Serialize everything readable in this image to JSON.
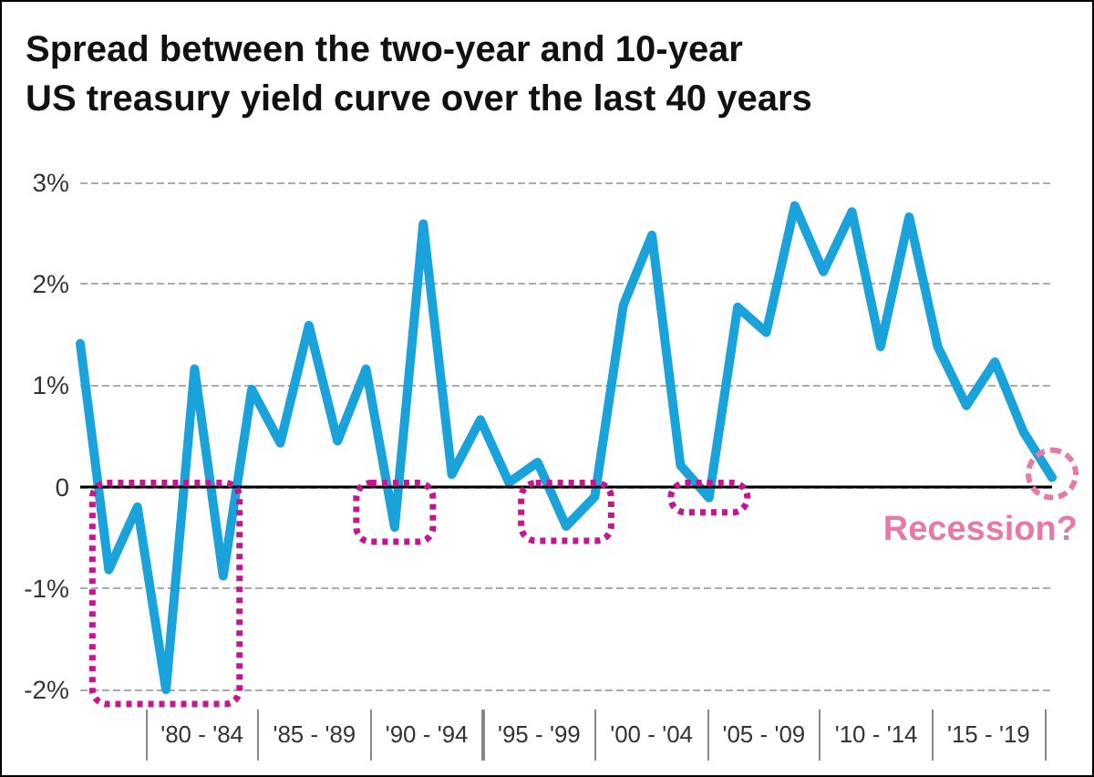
{
  "chart_data": {
    "type": "line",
    "title": "Spread between the two-year and 10-year\nUS treasury yield curve over the last 40 years",
    "categories": [
      null,
      null,
      null,
      null,
      null,
      null,
      null,
      null,
      null,
      null,
      null,
      null,
      null,
      null,
      null,
      null,
      null,
      null,
      null,
      null,
      null,
      null,
      null,
      null,
      null,
      null,
      null,
      null,
      null,
      null,
      null,
      null,
      null,
      null,
      null
    ],
    "series": [
      {
        "color": "#1aa3db",
        "values": [
          1.41,
          -0.82,
          -0.2,
          -2.0,
          1.16,
          -0.88,
          0.96,
          0.43,
          1.59,
          0.45,
          1.16,
          -0.4,
          2.59,
          0.12,
          0.66,
          0.04,
          0.24,
          -0.39,
          -0.1,
          1.79,
          2.48,
          0.21,
          -0.11,
          1.77,
          1.52,
          2.77,
          2.12,
          2.71,
          1.38,
          2.66,
          1.38,
          0.8,
          1.23,
          0.54,
          0.09
        ]
      }
    ],
    "ylim": [
      -2,
      3
    ],
    "yticks": [
      {
        "value": -2,
        "label": "-2%"
      },
      {
        "value": -1,
        "label": "-1%"
      },
      {
        "value": 0,
        "label": "0"
      },
      {
        "value": 1,
        "label": "1%"
      },
      {
        "value": 2,
        "label": "2%"
      },
      {
        "value": 3,
        "label": "3%"
      }
    ],
    "grid": "y",
    "ref_lines": [
      {
        "axis": "y",
        "value": 0,
        "color": "#000000"
      }
    ],
    "annotations": [
      "'80 - '84",
      "'85 - '89",
      "'90 - '94",
      "'95 - '99",
      "'00 - '04",
      "'05 - '09",
      "'10 - '14",
      "'15 - '19",
      "Recession?"
    ],
    "marker": "none",
    "line_style": "solid"
  }
}
